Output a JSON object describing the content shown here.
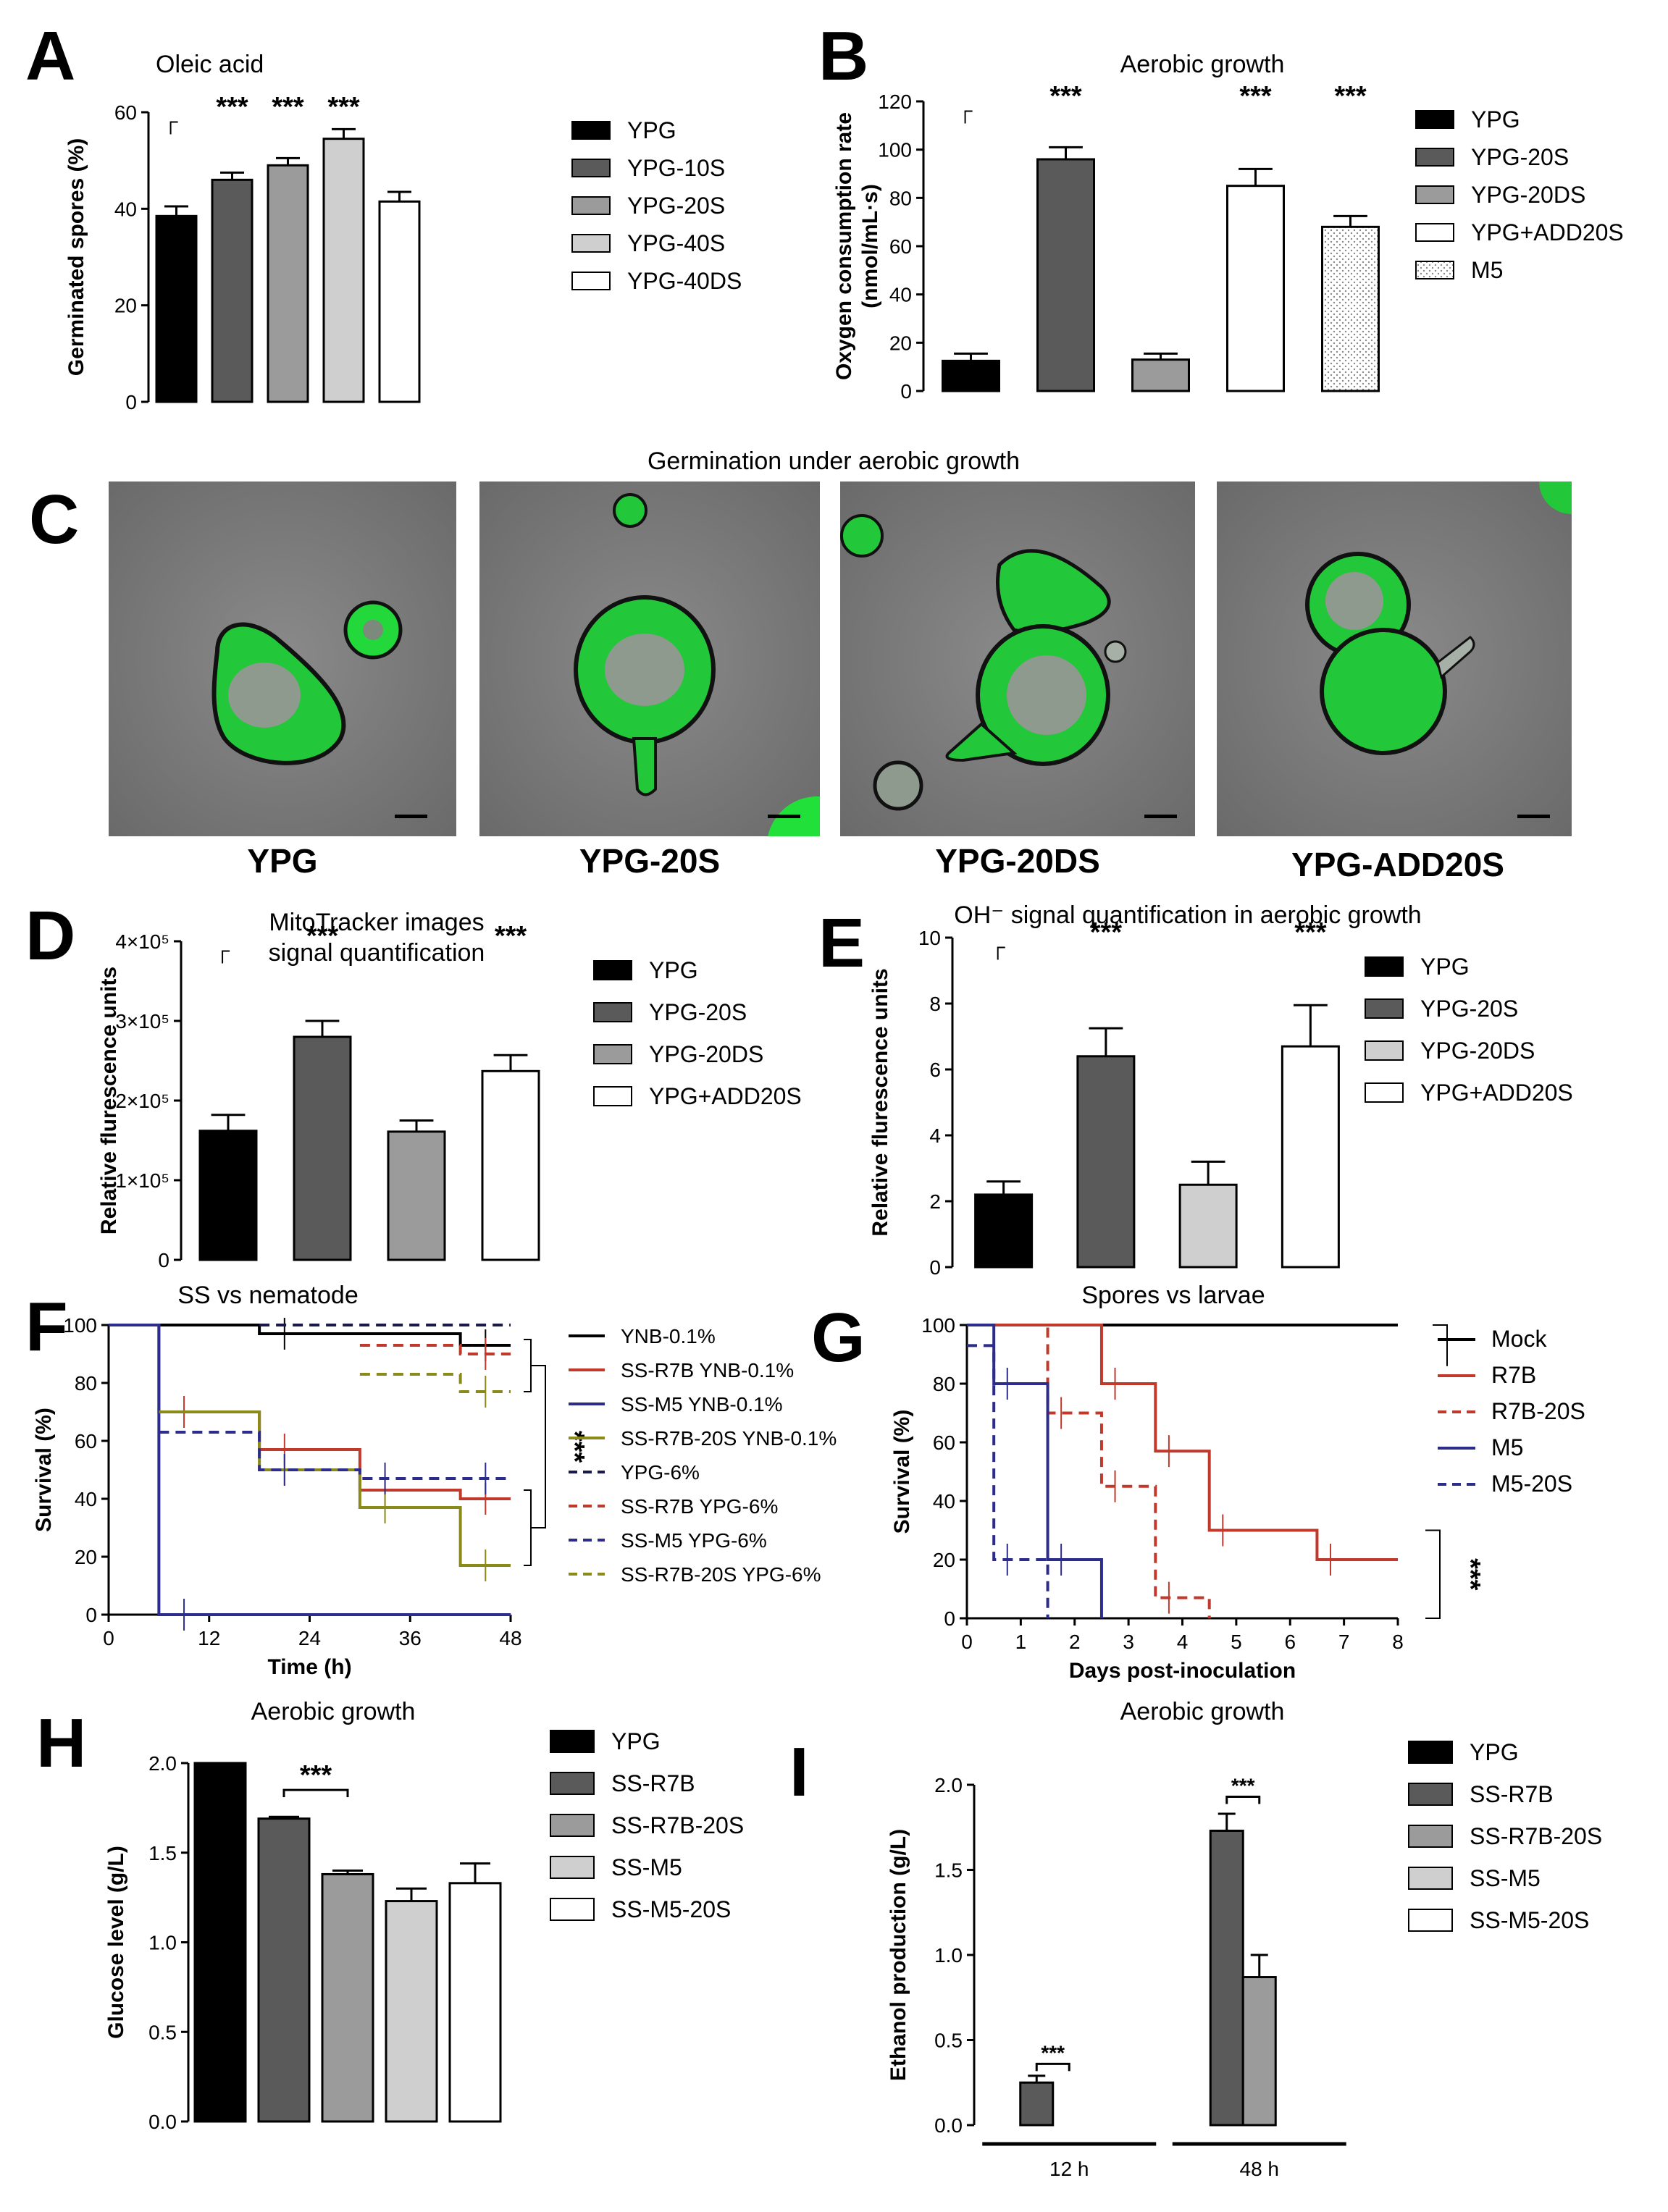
{
  "figure": {
    "colors": {
      "black": "#000000",
      "dark_gray": "#5a5a5a",
      "mid_gray": "#9b9b9b",
      "light_gray": "#cfcfcf",
      "white": "#ffffff",
      "red": "#c0392b",
      "blue": "#2c2c8c",
      "olive": "#8a8a1a",
      "navy": "#1a1a4a",
      "micro_bg": "#7a7a7a",
      "micro_green": "#22e03a"
    }
  },
  "chart_data": [
    {
      "id": "A",
      "type": "bar",
      "panel_letter": "A",
      "title": "Oleic acid",
      "ylabel": "Germinated spores (%)",
      "ylim": [
        0,
        60
      ],
      "yticks": [
        "0",
        "20",
        "40",
        "60"
      ],
      "categories": [
        "YPG",
        "YPG-10S",
        "YPG-20S",
        "YPG-40S",
        "YPG-40DS"
      ],
      "values": [
        38.5,
        46,
        49,
        54.5,
        41.5
      ],
      "errors": [
        2,
        1.5,
        1.5,
        2,
        2
      ],
      "fills": [
        "black",
        "dark_gray",
        "mid_gray",
        "light_gray",
        "white"
      ],
      "annotations": [
        "",
        "***",
        "***",
        "***",
        ""
      ],
      "reference_mark": "┌"
    },
    {
      "id": "B",
      "type": "bar",
      "panel_letter": "B",
      "title": "Aerobic growth",
      "ylabel": "Oxygen consumption rate (nmol/mL·s)",
      "ylabel_lines": [
        "Oxygen consumption rate",
        "(nmol/mL·s)"
      ],
      "ylim": [
        0,
        120
      ],
      "yticks": [
        "0",
        "20",
        "40",
        "60",
        "80",
        "100",
        "120"
      ],
      "categories": [
        "YPG",
        "YPG-20S",
        "YPG-20DS",
        "YPG+ADD20S",
        "M5"
      ],
      "values": [
        12.5,
        96,
        13,
        85,
        68
      ],
      "errors": [
        3,
        5,
        2.5,
        7,
        4.5
      ],
      "fills": [
        "black",
        "dark_gray",
        "mid_gray",
        "white",
        "dotted"
      ],
      "annotations": [
        "",
        "***",
        "",
        "***",
        "***"
      ],
      "reference_mark": "┌"
    },
    {
      "id": "D",
      "type": "bar",
      "panel_letter": "D",
      "title_lines": [
        "MitoTracker images",
        "signal quantification"
      ],
      "ylabel": "Relative flurescence units",
      "ylim": [
        0,
        400000
      ],
      "yticks": [
        "0",
        "1×10⁵",
        "2×10⁵",
        "3×10⁵",
        "4×10⁵"
      ],
      "categories": [
        "YPG",
        "YPG-20S",
        "YPG-20DS",
        "YPG+ADD20S"
      ],
      "values": [
        162000,
        280000,
        161000,
        237000
      ],
      "errors": [
        20000,
        20000,
        14000,
        20000
      ],
      "fills": [
        "black",
        "dark_gray",
        "mid_gray",
        "white"
      ],
      "annotations": [
        "",
        "***",
        "",
        "***"
      ],
      "reference_mark": "┌"
    },
    {
      "id": "E",
      "type": "bar",
      "panel_letter": "E",
      "title": "OH⁻ signal quantification in aerobic growth",
      "ylabel": "Relative flurescence units",
      "ylim": [
        0,
        10
      ],
      "yticks": [
        "0",
        "2",
        "4",
        "6",
        "8",
        "10"
      ],
      "categories": [
        "YPG",
        "YPG-20S",
        "YPG-20DS",
        "YPG+ADD20S"
      ],
      "values": [
        2.2,
        6.4,
        2.5,
        6.7
      ],
      "errors": [
        0.4,
        0.85,
        0.7,
        1.25
      ],
      "fills": [
        "black",
        "dark_gray",
        "light_gray",
        "white"
      ],
      "annotations": [
        "",
        "***",
        "",
        "***"
      ],
      "reference_mark": "┌"
    },
    {
      "id": "F",
      "type": "line",
      "panel_letter": "F",
      "title": "SS vs nematode",
      "xlabel": "Time (h)",
      "ylabel": "Survival (%)",
      "xlim": [
        0,
        48
      ],
      "ylim": [
        0,
        100
      ],
      "xticks": [
        "0",
        "12",
        "24",
        "36",
        "48"
      ],
      "yticks": [
        "0",
        "20",
        "40",
        "60",
        "80",
        "100"
      ],
      "significance": "***",
      "series": [
        {
          "name": "YNB-0.1%",
          "color": "black",
          "dashed": false,
          "x": [
            0,
            18,
            42,
            48
          ],
          "y": [
            100,
            97,
            93,
            93
          ]
        },
        {
          "name": "SS-R7B YNB-0.1%",
          "color": "red",
          "dashed": false,
          "x": [
            0,
            6,
            18,
            30,
            42,
            48
          ],
          "y": [
            100,
            70,
            57,
            43,
            40,
            40
          ]
        },
        {
          "name": "SS-M5 YNB-0.1%",
          "color": "blue",
          "dashed": false,
          "x": [
            0,
            6,
            48
          ],
          "y": [
            100,
            0,
            0
          ]
        },
        {
          "name": "SS-R7B-20S YNB-0.1%",
          "color": "olive",
          "dashed": false,
          "x": [
            6,
            18,
            30,
            42,
            48
          ],
          "y": [
            70,
            50,
            37,
            17,
            17
          ]
        },
        {
          "name": "YPG-6%",
          "color": "navy",
          "dashed": true,
          "x": [
            18,
            48
          ],
          "y": [
            100,
            100
          ]
        },
        {
          "name": "SS-R7B YPG-6%",
          "color": "red",
          "dashed": true,
          "x": [
            30,
            42,
            48
          ],
          "y": [
            93,
            90,
            90
          ]
        },
        {
          "name": "SS-M5 YPG-6%",
          "color": "blue",
          "dashed": true,
          "x": [
            6,
            18,
            30,
            42,
            48
          ],
          "y": [
            63,
            50,
            47,
            47,
            47
          ]
        },
        {
          "name": "SS-R7B-20S YPG-6%",
          "color": "olive",
          "dashed": true,
          "x": [
            30,
            42,
            48
          ],
          "y": [
            83,
            77,
            77
          ]
        }
      ]
    },
    {
      "id": "G",
      "type": "line",
      "panel_letter": "G",
      "title": "Spores vs larvae",
      "xlabel": "Days post-inoculation",
      "ylabel": "Survival (%)",
      "xlim": [
        0,
        8
      ],
      "ylim": [
        0,
        100
      ],
      "xticks": [
        "0",
        "1",
        "2",
        "3",
        "4",
        "5",
        "6",
        "7",
        "8"
      ],
      "yticks": [
        "0",
        "20",
        "40",
        "60",
        "80",
        "100"
      ],
      "significance": "***",
      "series": [
        {
          "name": "Mock",
          "color": "black",
          "dashed": false,
          "x": [
            0,
            8
          ],
          "y": [
            100,
            100
          ]
        },
        {
          "name": "R7B",
          "color": "red",
          "dashed": false,
          "x": [
            0,
            2.5,
            3.5,
            4.5,
            6.5,
            8
          ],
          "y": [
            100,
            80,
            57,
            30,
            20,
            20
          ]
        },
        {
          "name": "R7B-20S",
          "color": "red",
          "dashed": true,
          "x": [
            0,
            1.5,
            2.5,
            3.5,
            4.5
          ],
          "y": [
            100,
            70,
            45,
            7,
            0
          ]
        },
        {
          "name": "M5",
          "color": "blue",
          "dashed": false,
          "x": [
            0,
            0.5,
            1.5,
            2.5
          ],
          "y": [
            100,
            80,
            20,
            0
          ]
        },
        {
          "name": "M5-20S",
          "color": "blue",
          "dashed": true,
          "x": [
            0,
            0.5,
            1.5
          ],
          "y": [
            93,
            20,
            0
          ]
        }
      ]
    },
    {
      "id": "H",
      "type": "bar",
      "panel_letter": "H",
      "title": "Aerobic growth",
      "ylabel": "Glucose level (g/L)",
      "ylim": [
        0,
        2
      ],
      "yticks": [
        "0.0",
        "0.5",
        "1.0",
        "1.5",
        "2.0"
      ],
      "categories": [
        "YPG",
        "SS-R7B",
        "SS-R7B-20S",
        "SS-M5",
        "SS-M5-20S"
      ],
      "values": [
        2.0,
        1.69,
        1.38,
        1.23,
        1.33
      ],
      "errors": [
        0,
        0.01,
        0.02,
        0.07,
        0.11
      ],
      "fills": [
        "black",
        "dark_gray",
        "mid_gray",
        "light_gray",
        "white"
      ],
      "bracket": {
        "from": 1,
        "to": 2,
        "label": "***"
      }
    },
    {
      "id": "I",
      "type": "bar",
      "panel_letter": "I",
      "title": "Aerobic growth",
      "ylabel": "Ethanol production (g/L)",
      "ylim": [
        0,
        2
      ],
      "yticks": [
        "0.0",
        "0.5",
        "1.0",
        "1.5",
        "2.0"
      ],
      "groups": [
        "12 h",
        "48 h"
      ],
      "legend": [
        "YPG",
        "SS-R7B",
        "SS-R7B-20S",
        "SS-M5",
        "SS-M5-20S"
      ],
      "fills": [
        "black",
        "dark_gray",
        "mid_gray",
        "light_gray",
        "white"
      ],
      "series_values": [
        [
          0,
          0
        ],
        [
          0.25,
          1.73
        ],
        [
          0,
          0.87
        ],
        [
          0,
          0
        ],
        [
          0,
          0
        ]
      ],
      "series_errors": [
        [
          0,
          0
        ],
        [
          0.04,
          0.1
        ],
        [
          0,
          0.13
        ],
        [
          0,
          0
        ],
        [
          0,
          0
        ]
      ],
      "brackets": [
        {
          "label": "***"
        },
        {
          "label": "***"
        }
      ]
    }
  ],
  "micrographs": {
    "panel_letter": "C",
    "title": "Germination under aerobic growth",
    "labels": [
      "YPG",
      "YPG-20S",
      "YPG-20DS",
      "YPG-ADD20S"
    ]
  }
}
